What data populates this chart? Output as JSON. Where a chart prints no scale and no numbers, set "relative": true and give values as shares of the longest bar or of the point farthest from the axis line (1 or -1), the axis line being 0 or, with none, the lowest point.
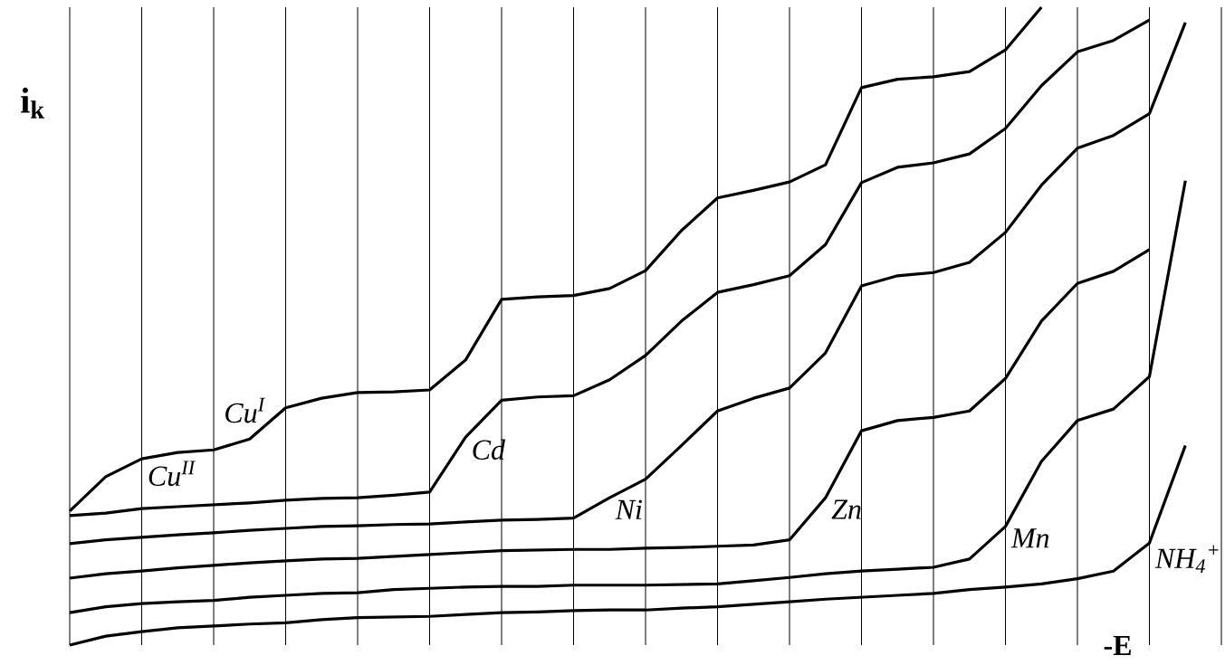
{
  "chart_data": {
    "type": "line",
    "relative": true,
    "xlabel": "-E",
    "ylabel": "i$_{k}$",
    "grid": "x",
    "legend": false,
    "marker": "none",
    "line_style": "solid",
    "categories": [
      null,
      null,
      null,
      null,
      null,
      null,
      null,
      null,
      null,
      null,
      null,
      null,
      null,
      null,
      null,
      null,
      null,
      null,
      null,
      null,
      null,
      null,
      null,
      null,
      null,
      null,
      null,
      null,
      null,
      null,
      null,
      null,
      null
    ],
    "annotations": [
      "Cu$^{I}$"
    ],
    "series": [
      {
        "name": "Cu$^{II}$",
        "color": "#000000",
        "values": [
          0.21,
          0.264,
          0.292,
          0.302,
          0.306,
          0.323,
          0.372,
          0.387,
          0.396,
          0.397,
          0.4,
          0.447,
          0.542,
          0.546,
          0.548,
          0.559,
          0.587,
          0.65,
          0.701,
          0.713,
          0.726,
          0.753,
          0.874,
          0.887,
          0.891,
          0.899,
          0.933,
          1.0,
          null,
          null,
          null,
          null,
          null
        ]
      },
      {
        "name": "Cd",
        "color": "#000000",
        "values": [
          0.203,
          0.207,
          0.214,
          0.217,
          0.22,
          0.223,
          0.227,
          0.23,
          0.231,
          0.235,
          0.24,
          0.326,
          0.384,
          0.389,
          0.391,
          0.416,
          0.454,
          0.508,
          0.553,
          0.565,
          0.579,
          0.628,
          0.725,
          0.749,
          0.756,
          0.77,
          0.81,
          0.877,
          0.93,
          0.948,
          0.98,
          null,
          null
        ]
      },
      {
        "name": "Ni",
        "color": "#000000",
        "values": [
          0.159,
          0.165,
          0.169,
          0.173,
          0.176,
          0.18,
          0.183,
          0.186,
          0.187,
          0.189,
          0.19,
          0.193,
          0.196,
          0.197,
          0.199,
          0.231,
          0.26,
          0.313,
          0.367,
          0.387,
          0.403,
          0.458,
          0.563,
          0.579,
          0.584,
          0.6,
          0.647,
          0.721,
          0.779,
          0.799,
          0.833,
          0.976,
          null
        ]
      },
      {
        "name": "Zn",
        "color": "#000000",
        "values": [
          0.105,
          0.112,
          0.116,
          0.121,
          0.125,
          0.129,
          0.132,
          0.135,
          0.136,
          0.139,
          0.142,
          0.145,
          0.148,
          0.149,
          0.15,
          0.15,
          0.152,
          0.153,
          0.155,
          0.157,
          0.165,
          0.231,
          0.336,
          0.352,
          0.357,
          0.367,
          0.418,
          0.508,
          0.567,
          0.586,
          0.62,
          null,
          null
        ]
      },
      {
        "name": "Mn",
        "color": "#000000",
        "values": [
          0.051,
          0.06,
          0.065,
          0.068,
          0.07,
          0.075,
          0.078,
          0.081,
          0.082,
          0.087,
          0.089,
          0.091,
          0.092,
          0.092,
          0.094,
          0.094,
          0.094,
          0.095,
          0.096,
          0.101,
          0.106,
          0.112,
          0.116,
          0.119,
          0.122,
          0.135,
          0.186,
          0.288,
          0.352,
          0.37,
          0.421,
          0.728,
          null
        ]
      },
      {
        "name": "NH$_{4}$$^{+}$",
        "color": "#000000",
        "values": [
          0.0,
          0.014,
          0.021,
          0.027,
          0.03,
          0.033,
          0.035,
          0.04,
          0.043,
          0.044,
          0.045,
          0.048,
          0.051,
          0.052,
          0.054,
          0.055,
          0.055,
          0.058,
          0.06,
          0.064,
          0.068,
          0.072,
          0.075,
          0.078,
          0.081,
          0.087,
          0.091,
          0.096,
          0.104,
          0.116,
          0.16,
          0.313,
          null
        ]
      }
    ]
  }
}
